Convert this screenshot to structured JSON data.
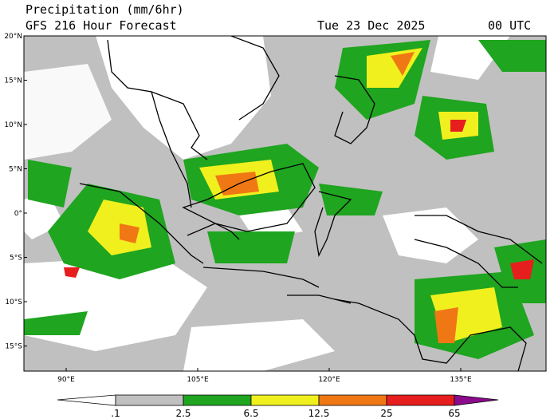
{
  "header": {
    "title": "Precipitation (mm/6hr)",
    "subtitle": "GFS 216 Hour Forecast",
    "date": "Tue 23 Dec 2025",
    "time": "00 UTC"
  },
  "map": {
    "lat_labels": [
      "20°N",
      "15°N",
      "10°N",
      "5°N",
      "0°",
      "5°S",
      "10°S",
      "15°S"
    ],
    "lon_labels": [
      "90°E",
      "105°E",
      "120°E",
      "135°E"
    ]
  },
  "colorbar": {
    "labels": [
      ".1",
      "2.5",
      "6.5",
      "12.5",
      "25",
      "65"
    ]
  }
}
